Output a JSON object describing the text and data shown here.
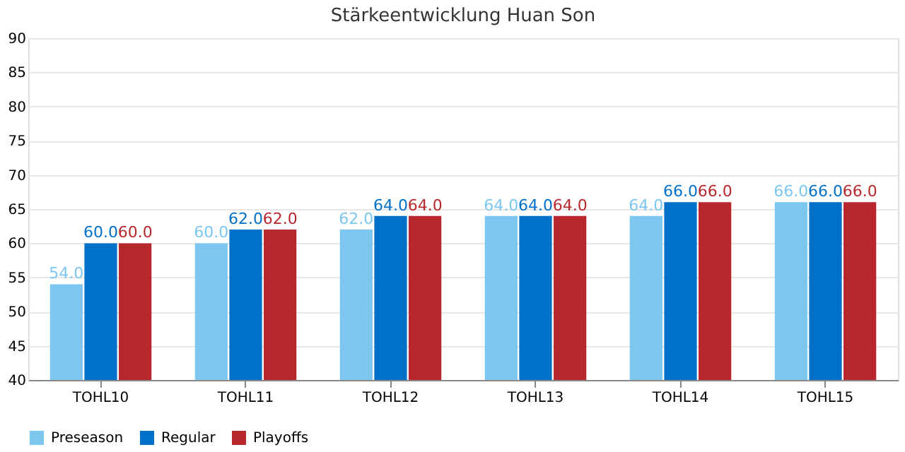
{
  "chart_data": {
    "type": "bar",
    "title": "Stärkeentwicklung Huan Son",
    "categories": [
      "TOHL10",
      "TOHL11",
      "TOHL12",
      "TOHL13",
      "TOHL14",
      "TOHL15"
    ],
    "series": [
      {
        "name": "Preseason",
        "color": "#7cc6f0",
        "values": [
          54,
          60,
          62,
          64,
          64,
          66
        ],
        "value_labels": [
          "54.0",
          "60.0",
          "62.0",
          "64.0",
          "64.0",
          "66.0"
        ]
      },
      {
        "name": "Regular",
        "color": "#0070c8",
        "values": [
          60,
          62,
          64,
          64,
          66,
          66
        ],
        "value_labels": [
          "60.0",
          "62.0",
          "64.0",
          "64.0",
          "66.0",
          "66.0"
        ]
      },
      {
        "name": "Playoffs",
        "color": "#b8272c",
        "values": [
          60,
          62,
          64,
          64,
          66,
          66
        ],
        "value_labels": [
          "60.0",
          "62.0",
          "64.0",
          "64.0",
          "66.0",
          "66.0"
        ]
      }
    ],
    "ylim": [
      40,
      90
    ],
    "yticks": [
      40,
      45,
      50,
      55,
      60,
      65,
      70,
      75,
      80,
      85,
      90
    ],
    "grid": "y",
    "legend": "bottom"
  }
}
